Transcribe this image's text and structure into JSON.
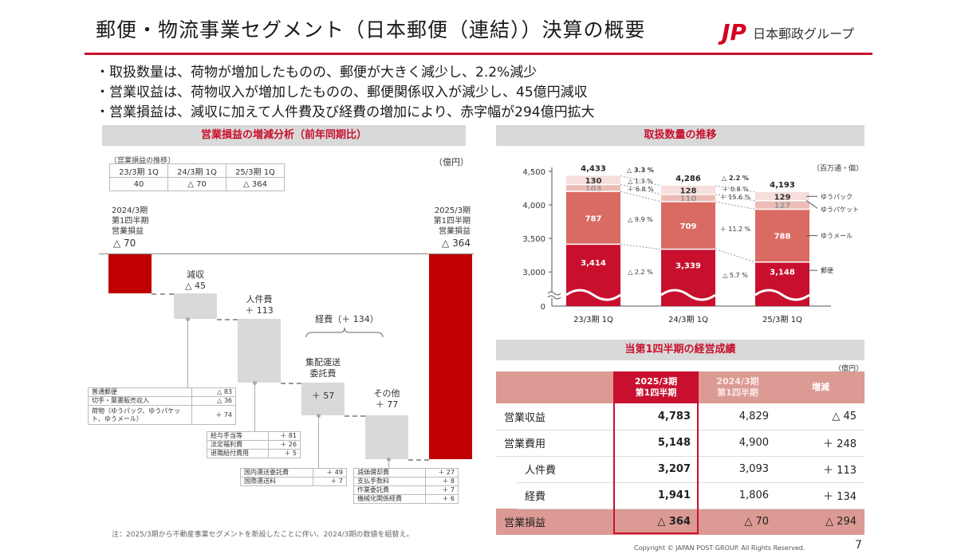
{
  "header": {
    "title": "郵便・物流事業セグメント（日本郵便（連結））決算の概要",
    "logo_mark": "JP",
    "logo_text": "日本郵政グループ"
  },
  "bullets": [
    "・取扱数量は、荷物が増加したものの、郵便が大きく減少し、2.2%減少",
    "・営業収益は、荷物収入が増加したものの、郵便関係収入が減少し、45億円減収",
    "・営業損益は、減収に加えて人件費及び経費の増加により、赤字幅が294億円拡大"
  ],
  "waterfall": {
    "title": "営業損益の増減分析（前年同期比）",
    "unit": "（億円）",
    "history": {
      "caption": "〔営業損益の推移〕",
      "headers": [
        "23/3期 1Q",
        "24/3期 1Q",
        "25/3期 1Q"
      ],
      "values": [
        "40",
        "△ 70",
        "△ 364"
      ]
    },
    "start": {
      "lines": [
        "2024/3期",
        "第1四半期",
        "営業損益"
      ],
      "value": "△ 70"
    },
    "end": {
      "lines": [
        "2025/3期",
        "第1四半期",
        "営業損益"
      ],
      "value": "△ 364"
    },
    "steps": [
      {
        "label": "減収",
        "value": "△ 45"
      },
      {
        "label": "人件費",
        "value": "＋ 113"
      },
      {
        "label": "集配運送\n委託費",
        "value": "＋ 57"
      },
      {
        "label": "その他",
        "value": "＋ 77"
      }
    ],
    "group_label": "経費（＋ 134）",
    "breakdowns": {
      "revenue": [
        {
          "item": "普通郵便",
          "value": "△ 83"
        },
        {
          "item": "切手・葉書販売収入",
          "value": "△ 36"
        },
        {
          "item": "荷物（ゆうパック、ゆうパケット、ゆうメール）",
          "value": "＋ 74"
        }
      ],
      "personnel": [
        {
          "item": "給与手当等",
          "value": "＋ 81"
        },
        {
          "item": "法定福利費",
          "value": "＋ 26"
        },
        {
          "item": "退職給付費用",
          "value": "＋ 5"
        }
      ],
      "delivery": [
        {
          "item": "国内運送委託費",
          "value": "＋ 49"
        },
        {
          "item": "国際運送料",
          "value": "＋ 7"
        }
      ],
      "other": [
        {
          "item": "減価償却費",
          "value": "＋ 27"
        },
        {
          "item": "支払手数料",
          "value": "＋ 8"
        },
        {
          "item": "作業委託費",
          "value": "＋ 7"
        },
        {
          "item": "機械化関係経費",
          "value": "＋ 6"
        }
      ]
    },
    "note": "注：2025/3期から不動産事業セグメントを新設したことに伴い、2024/3期の数値を組替え。"
  },
  "chart_data": {
    "type": "bar",
    "title": "取扱数量の推移",
    "unit": "（百万通・個）",
    "categories": [
      "23/3期 1Q",
      "24/3期 1Q",
      "25/3期 1Q"
    ],
    "yticks": [
      "0",
      "3,000",
      "3,500",
      "4,000",
      "4,500"
    ],
    "ylim": [
      0,
      4500
    ],
    "axis_break": true,
    "totals": [
      "4,433",
      "4,286",
      "4,193"
    ],
    "series": [
      {
        "name": "郵便",
        "values": [
          3414,
          3339,
          3148
        ],
        "labels": [
          "3,414",
          "3,339",
          "3,148"
        ],
        "color": "#c8102e"
      },
      {
        "name": "ゆうメール",
        "values": [
          787,
          709,
          788
        ],
        "labels": [
          "787",
          "709",
          "788"
        ],
        "color": "#d96b63"
      },
      {
        "name": "ゆうパケット",
        "values": [
          103,
          110,
          127
        ],
        "labels": [
          "103",
          "110",
          "127"
        ],
        "color": "#eebcb6"
      },
      {
        "name": "ゆうパック",
        "values": [
          130,
          128,
          129
        ],
        "labels": [
          "130",
          "128",
          "129"
        ],
        "color": "#f5dedb"
      }
    ],
    "changes": [
      {
        "total": "△ 3.3 %",
        "ゆうパック": "△ 1.3 %",
        "ゆうパケット": "＋ 6.8 %",
        "ゆうメール": "△ 9.9 %",
        "郵便": "△ 2.2 %"
      },
      {
        "total": "△ 2.2 %",
        "ゆうパック": "＋ 0.8 %",
        "ゆうパケット": "＋ 15.6 %",
        "ゆうメール": "＋ 11.2 %",
        "郵便": "△ 5.7 %"
      }
    ],
    "legend": "right"
  },
  "results": {
    "title": "当第1四半期の経営成績",
    "unit": "（億円）",
    "headers": [
      "",
      "2025/3期\n第1四半期",
      "2024/3期\n第1四半期",
      "増減"
    ],
    "rows": [
      {
        "label": "営業収益",
        "cur": "4,783",
        "prev": "4,829",
        "diff": "△ 45"
      },
      {
        "label": "営業費用",
        "cur": "5,148",
        "prev": "4,900",
        "diff": "＋ 248"
      },
      {
        "label": "人件費",
        "cur": "3,207",
        "prev": "3,093",
        "diff": "＋ 113"
      },
      {
        "label": "経費",
        "cur": "1,941",
        "prev": "1,806",
        "diff": "＋ 134"
      },
      {
        "label": "営業損益",
        "cur": "△ 364",
        "prev": "△ 70",
        "diff": "△ 294"
      }
    ]
  },
  "footer": {
    "copyright": "Copyright ©  JAPAN POST GROUP. All Rights Reserved.",
    "page": "7"
  }
}
